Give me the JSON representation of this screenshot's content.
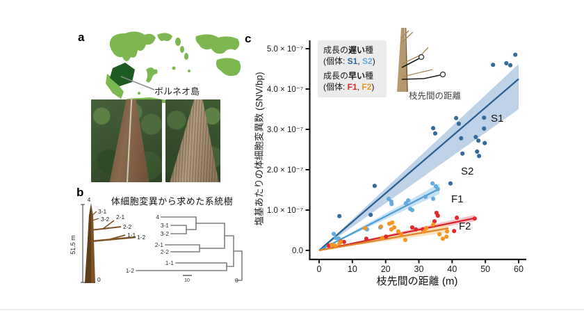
{
  "figure": {
    "panel_a": {
      "label": "a",
      "map_caption": "ボルネオ島",
      "map_colors": {
        "land": "#7cb84f",
        "highlight": "#1e5b20"
      }
    },
    "panel_b": {
      "label": "b",
      "title": "体細胞変異から求めた系統樹",
      "height_scale_label": "51.5 m",
      "tree_tip_labels": [
        "4",
        "3-1",
        "3-2",
        "2-1",
        "2-2",
        "1-1",
        "1-2",
        "0"
      ],
      "dendrogram_tip_labels": [
        "4",
        "3-1",
        "3-2",
        "2-1",
        "2-2",
        "1-1",
        "1-2",
        "0"
      ],
      "dendrogram_scale_label": "10"
    },
    "panel_c": {
      "label": "c",
      "legend": {
        "slow_prefix": "成長の",
        "slow_bold": "遅い",
        "slow_suffix": "種",
        "slow_ind_prefix": "(個体: ",
        "slow_s1": "S1",
        "slow_sep": ", ",
        "slow_s2": "S2",
        "slow_ind_suffix": ")",
        "fast_prefix": "成長の",
        "fast_bold": "早い",
        "fast_suffix": "種",
        "fast_ind_prefix": "(個体: ",
        "fast_f1": "F1",
        "fast_sep": ", ",
        "fast_f2": "F2",
        "fast_ind_suffix": ")"
      },
      "inset_caption": "枝先間の距離"
    }
  },
  "chart_data": {
    "type": "scatter",
    "xlabel": "枝先間の距離 (m)",
    "ylabel": "塩基あたりの体細胞変異数 (SNV/bp)",
    "x_range": [
      0,
      62
    ],
    "x_ticks": [
      0,
      10,
      20,
      30,
      40,
      50,
      60
    ],
    "y_unit_multiplier": 1e-07,
    "y_ticks": [
      {
        "v": 0,
        "label": "0.0"
      },
      {
        "v": 1,
        "label": "1.0 × 10⁻⁷"
      },
      {
        "v": 2,
        "label": "2.0 × 10⁻⁷"
      },
      {
        "v": 3,
        "label": "3.0 × 10⁻⁷"
      },
      {
        "v": 4,
        "label": "4.0 × 10⁻⁷"
      },
      {
        "v": 5,
        "label": "5.0 × 10⁻⁷"
      }
    ],
    "grid": false,
    "legend_position": "top-left-inside",
    "series": [
      {
        "name": "S1",
        "point_color": "#2d6596",
        "line_color": "#2a6093",
        "band_color": "#a9c4e0",
        "band_opacity": 0.75,
        "fit_end": [
          60,
          4.25
        ],
        "band_end": {
          "x": 60,
          "upper": 4.62,
          "lower": 3.5
        },
        "label_xy": [
          706,
          175
        ],
        "points": [
          [
            59.0,
            4.85
          ],
          [
            56.3,
            4.64
          ],
          [
            57.5,
            4.59
          ],
          [
            52.3,
            4.6
          ],
          [
            49.6,
            3.29
          ],
          [
            41.2,
            3.28
          ],
          [
            42.0,
            3.14
          ],
          [
            49.6,
            3.02
          ],
          [
            34.3,
            3.03
          ],
          [
            34.9,
            2.9
          ],
          [
            47.1,
            2.81
          ],
          [
            42.7,
            2.78
          ],
          [
            47.9,
            2.72
          ],
          [
            49.8,
            2.66
          ],
          [
            47.5,
            2.45
          ],
          [
            43.1,
            2.4
          ],
          [
            48.1,
            2.34
          ],
          [
            39.5,
            1.66
          ],
          [
            16.7,
            1.6
          ],
          [
            15.5,
            0.88
          ],
          [
            6.1,
            0.85
          ]
        ]
      },
      {
        "name": "S2",
        "point_color": "#61a9dc",
        "line_color": "#4d9dd4",
        "band_color": "#bcdcf2",
        "band_opacity": 0.85,
        "fit_end": [
          36.2,
          1.53
        ],
        "band_end": {
          "x": 36.2,
          "upper": 1.66,
          "lower": 1.4
        },
        "label_xy": [
          663,
          251
        ],
        "points": [
          [
            34.1,
            1.66
          ],
          [
            35.1,
            1.59
          ],
          [
            35.7,
            1.52
          ],
          [
            32.0,
            1.33
          ],
          [
            34.3,
            1.28
          ],
          [
            26.8,
            1.24
          ],
          [
            26.1,
            1.17
          ],
          [
            27.4,
            1.03
          ],
          [
            28.0,
            1.0
          ],
          [
            20.9,
            1.28
          ],
          [
            21.7,
            1.21
          ],
          [
            21.8,
            1.15
          ],
          [
            18.4,
            0.57
          ],
          [
            14.4,
            0.52
          ],
          [
            5.0,
            0.31
          ],
          [
            5.9,
            0.29
          ],
          [
            4.4,
            0.41
          ]
        ]
      },
      {
        "name": "F1",
        "point_color": "#e2232a",
        "line_color": "#d6252b",
        "band_color": "#f2b9bd",
        "band_opacity": 0.85,
        "fit_end": [
          46.8,
          0.8
        ],
        "band_end": {
          "x": 46.8,
          "upper": 0.88,
          "lower": 0.72
        },
        "label_xy": [
          649,
          291
        ],
        "points": [
          [
            35.3,
            0.93
          ],
          [
            35.7,
            0.86
          ],
          [
            34.7,
            0.72
          ],
          [
            41.4,
            0.81
          ],
          [
            46.8,
            0.79
          ],
          [
            31.2,
            0.52
          ],
          [
            28.0,
            0.57
          ],
          [
            29.1,
            0.52
          ],
          [
            40.6,
            0.48
          ],
          [
            20.1,
            0.34
          ],
          [
            14.2,
            0.29
          ],
          [
            7.5,
            0.21
          ],
          [
            6.5,
            0.22
          ],
          [
            2.9,
            0.12
          ]
        ]
      },
      {
        "name": "F2",
        "point_color": "#f6921e",
        "line_color": "#e0862a",
        "band_color": "#f8dcb2",
        "band_opacity": 0.85,
        "fit_end": [
          38.9,
          0.55
        ],
        "band_end": {
          "x": 38.9,
          "upper": 0.65,
          "lower": 0.45
        },
        "label_xy": [
          660,
          330
        ],
        "points": [
          [
            22.0,
            0.69
          ],
          [
            21.1,
            0.66
          ],
          [
            22.6,
            0.57
          ],
          [
            21.7,
            0.52
          ],
          [
            18.6,
            0.59
          ],
          [
            13.8,
            0.55
          ],
          [
            19.0,
            0.31
          ],
          [
            23.8,
            0.47
          ],
          [
            24.7,
            0.4
          ],
          [
            25.9,
            0.26
          ],
          [
            32.2,
            0.55
          ],
          [
            34.3,
            0.64
          ],
          [
            36.2,
            0.4
          ],
          [
            37.2,
            0.29
          ],
          [
            38.3,
            0.34
          ],
          [
            31.6,
            0.47
          ],
          [
            38.5,
            0.47
          ],
          [
            6.5,
            0.21
          ],
          [
            6.1,
            0.17
          ],
          [
            4.8,
            0.12
          ],
          [
            3.8,
            0.14
          ]
        ]
      }
    ]
  }
}
